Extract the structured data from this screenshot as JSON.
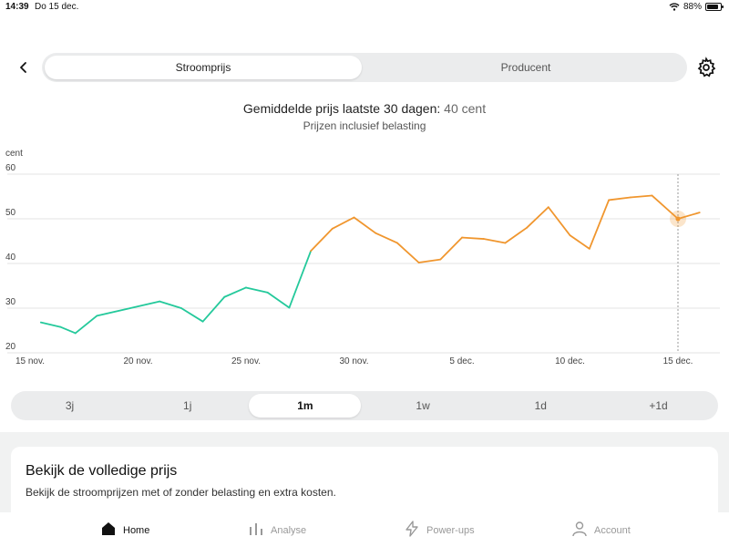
{
  "status": {
    "time": "14:39",
    "date": "Do 15 dec.",
    "battery": "88%",
    "battery_level": 0.88
  },
  "header": {
    "tabs": [
      {
        "label": "Stroomprijs",
        "active": true
      },
      {
        "label": "Producent",
        "active": false
      }
    ]
  },
  "summary": {
    "avg_label": "Gemiddelde prijs laatste 30 dagen:",
    "avg_value": "40 cent",
    "subtitle": "Prijzen inclusief belasting"
  },
  "chart_data": {
    "type": "line",
    "ylabel": "cent",
    "ylim": [
      20,
      60
    ],
    "yticks": [
      20,
      30,
      40,
      50,
      60
    ],
    "x_tick_labels": [
      {
        "label": "15 nov.",
        "day": 0
      },
      {
        "label": "20 nov.",
        "day": 5
      },
      {
        "label": "25 nov.",
        "day": 10
      },
      {
        "label": "30 nov.",
        "day": 15
      },
      {
        "label": "5 dec.",
        "day": 20
      },
      {
        "label": "10 dec.",
        "day": 25
      },
      {
        "label": "15 dec.",
        "day": 30
      }
    ],
    "points": [
      {
        "day": 0.5,
        "value": 26.8
      },
      {
        "day": 1.4,
        "value": 25.8
      },
      {
        "day": 2.1,
        "value": 24.4
      },
      {
        "day": 3.1,
        "value": 28.3
      },
      {
        "day": 6.0,
        "value": 31.5
      },
      {
        "day": 7.0,
        "value": 30.0
      },
      {
        "day": 8.0,
        "value": 27.0
      },
      {
        "day": 9.0,
        "value": 32.5
      },
      {
        "day": 10.0,
        "value": 34.6
      },
      {
        "day": 11.0,
        "value": 33.5
      },
      {
        "day": 12.0,
        "value": 30.1
      },
      {
        "day": 13.0,
        "value": 42.8
      },
      {
        "day": 14.0,
        "value": 47.8
      },
      {
        "day": 15.0,
        "value": 50.3
      },
      {
        "day": 16.0,
        "value": 46.8
      },
      {
        "day": 17.0,
        "value": 44.6
      },
      {
        "day": 18.0,
        "value": 40.2
      },
      {
        "day": 19.0,
        "value": 40.9
      },
      {
        "day": 20.0,
        "value": 45.8
      },
      {
        "day": 21.0,
        "value": 45.5
      },
      {
        "day": 22.0,
        "value": 44.6
      },
      {
        "day": 23.0,
        "value": 48.0
      },
      {
        "day": 24.0,
        "value": 52.6
      },
      {
        "day": 25.0,
        "value": 46.3
      },
      {
        "day": 25.9,
        "value": 43.3
      },
      {
        "day": 26.8,
        "value": 54.2
      },
      {
        "day": 27.8,
        "value": 54.8
      },
      {
        "day": 28.8,
        "value": 55.2
      },
      {
        "day": 30.0,
        "value": 50.0
      },
      {
        "day": 31.0,
        "value": 51.4
      }
    ],
    "threshold_value": 40,
    "colors": {
      "low": "#24c99b",
      "high": "#f0962e",
      "selected": "#f0962e"
    },
    "selected_day": 30.0
  },
  "ranges": [
    {
      "label": "3j",
      "active": false
    },
    {
      "label": "1j",
      "active": false
    },
    {
      "label": "1m",
      "active": true
    },
    {
      "label": "1w",
      "active": false
    },
    {
      "label": "1d",
      "active": false
    },
    {
      "label": "+1d",
      "active": false
    }
  ],
  "card": {
    "title": "Bekijk de volledige prijs",
    "description": "Bekijk de stroomprijzen met of zonder belasting en extra kosten."
  },
  "tabbar": [
    {
      "label": "Home",
      "icon": "home-icon",
      "active": true
    },
    {
      "label": "Analyse",
      "icon": "bar-chart-icon",
      "active": false
    },
    {
      "label": "Power-ups",
      "icon": "lightning-icon",
      "active": false
    },
    {
      "label": "Account",
      "icon": "person-icon",
      "active": false
    }
  ]
}
